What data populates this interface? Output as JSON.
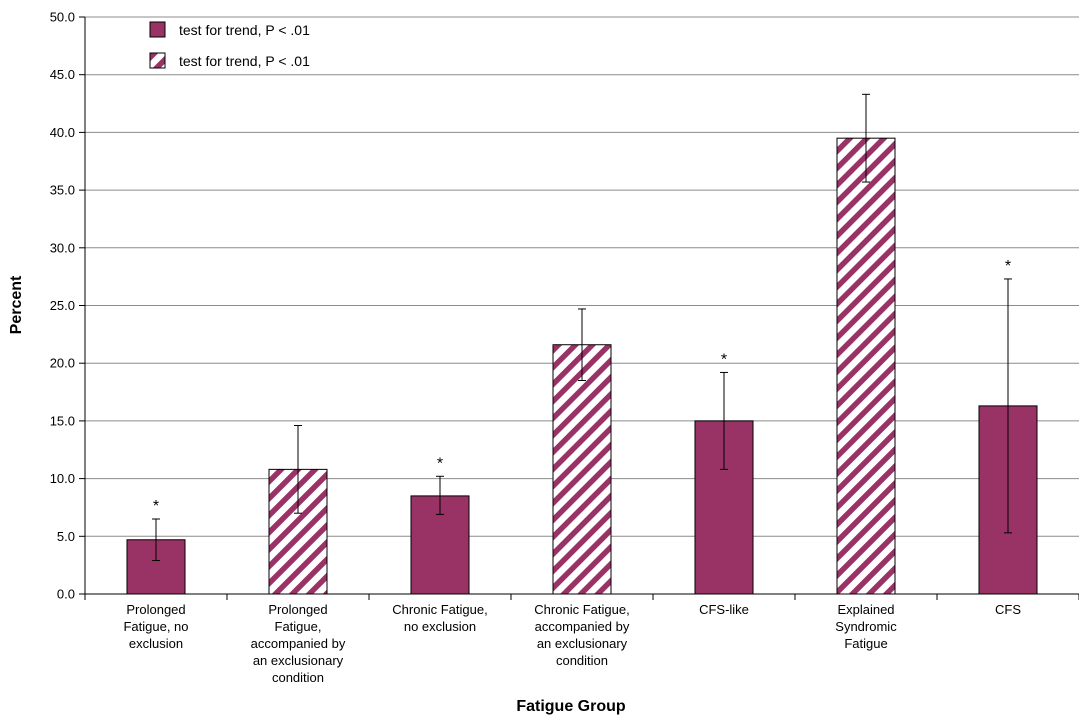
{
  "chart_data": {
    "type": "bar",
    "xlabel": "Fatigue Group",
    "ylabel": "Percent",
    "ylim": [
      0,
      50
    ],
    "yticks": [
      "0.0",
      "5.0",
      "10.0",
      "15.0",
      "20.0",
      "25.0",
      "30.0",
      "35.0",
      "40.0",
      "45.0",
      "50.0"
    ],
    "grid": true,
    "legend_position": "top-left",
    "colors": {
      "bar": "#993366",
      "edge": "#000000",
      "hatch_bg": "#ffffff"
    },
    "legend": [
      {
        "label": "test for trend, P < .01",
        "style": "solid"
      },
      {
        "label": "test for trend, P < .01",
        "style": "hatched"
      }
    ],
    "categories": [
      [
        "Prolonged",
        "Fatigue, no",
        "exclusion"
      ],
      [
        "Prolonged",
        "Fatigue,",
        "accompanied by",
        "an exclusionary",
        "condition"
      ],
      [
        "Chronic Fatigue,",
        "no exclusion"
      ],
      [
        "Chronic Fatigue,",
        "accompanied by",
        "an exclusionary",
        "condition"
      ],
      [
        "CFS-like"
      ],
      [
        "Explained",
        "Syndromic",
        "Fatigue"
      ],
      [
        "CFS"
      ]
    ],
    "values": [
      4.7,
      10.8,
      8.5,
      21.6,
      15.0,
      39.5,
      16.3
    ],
    "error_low": [
      2.9,
      7.0,
      6.9,
      18.5,
      10.8,
      35.7,
      5.3
    ],
    "error_high": [
      6.5,
      14.6,
      10.2,
      24.7,
      19.2,
      43.3,
      27.3
    ],
    "styles": [
      "solid",
      "hatched",
      "solid",
      "hatched",
      "solid",
      "hatched",
      "solid"
    ],
    "significance_marks": [
      "*",
      "",
      "*",
      "",
      "*",
      "",
      "*"
    ]
  }
}
